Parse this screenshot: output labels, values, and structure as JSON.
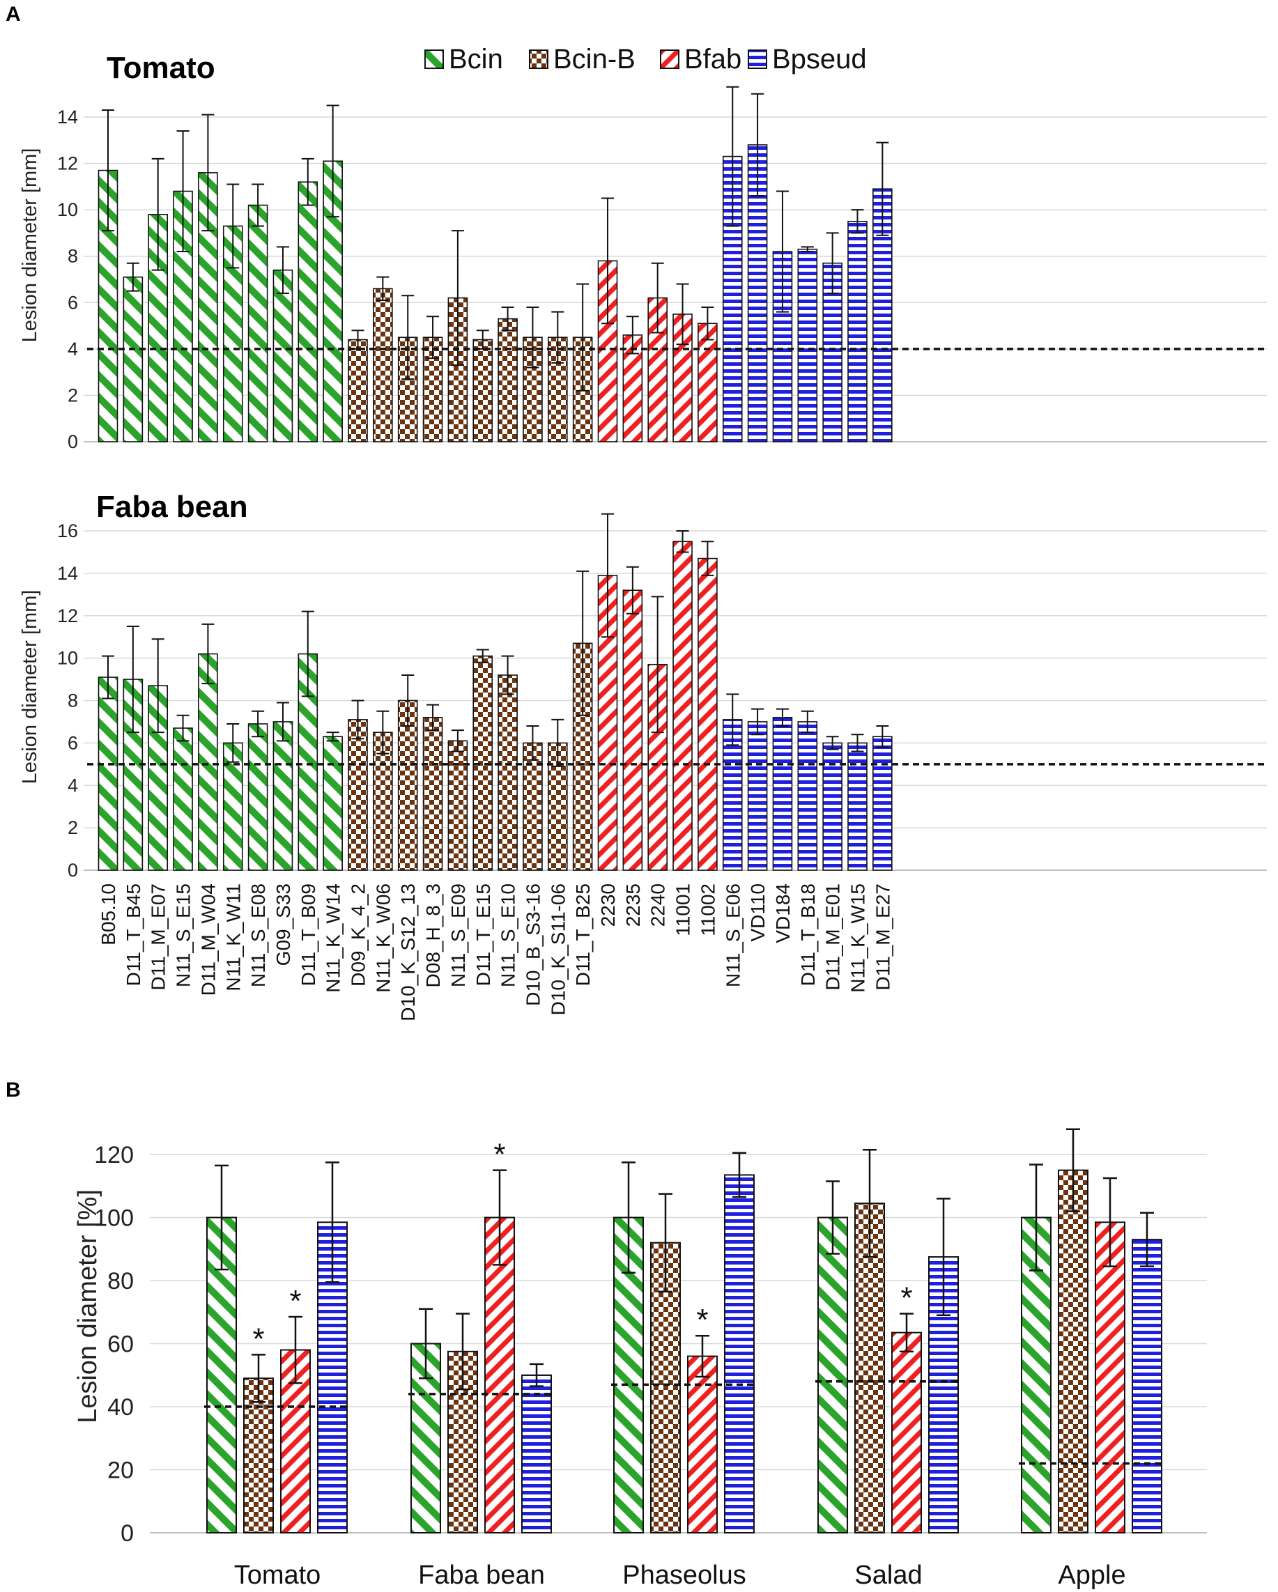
{
  "panel_labels": {
    "a": "A",
    "b": "B"
  },
  "colors": {
    "Bcin": "#2aa42a",
    "Bcin-B": "#6b3410",
    "Bfab": "#f02020",
    "Bpseud": "#1f1fe0"
  },
  "patterns": {
    "Bcin": "diag-green",
    "Bcin-B": "check-brown",
    "Bfab": "diag-red",
    "Bpseud": "hstripe-blue"
  },
  "legend": [
    "Bcin",
    "Bcin-B",
    "Bfab",
    "Bpseud"
  ],
  "chart_data": [
    {
      "id": "A-tomato",
      "type": "bar",
      "title": "Tomato",
      "ylabel": "Lesion diameter [mm]",
      "ylim": [
        0,
        15
      ],
      "yticks": [
        0,
        2,
        4,
        6,
        8,
        10,
        12,
        14
      ],
      "threshold": 4,
      "categories": [
        "B05.10",
        "D11_T_B45",
        "D11_M_E07",
        "N11_S_E15",
        "D11_M_W04",
        "N11_K_W11",
        "N11_S_E08",
        "G09_S33",
        "D11_T_B09",
        "N11_K_W14",
        "D09_K_4_2",
        "N11_K_W06",
        "D10_K_S12_13",
        "D08_H_8_3",
        "N11_S_E09",
        "D11_T_E15",
        "N11_S_E10",
        "D10_B_S3-16",
        "D10_K_S11-06",
        "D11_T_B25",
        "2230",
        "2235",
        "2240",
        "11001",
        "11002",
        "N11_S_E06",
        "VD110",
        "VD184",
        "D11_T_B18",
        "D11_M_E01",
        "N11_K_W15",
        "D11_M_E27"
      ],
      "groups": [
        "Bcin",
        "Bcin",
        "Bcin",
        "Bcin",
        "Bcin",
        "Bcin",
        "Bcin",
        "Bcin",
        "Bcin",
        "Bcin",
        "Bcin-B",
        "Bcin-B",
        "Bcin-B",
        "Bcin-B",
        "Bcin-B",
        "Bcin-B",
        "Bcin-B",
        "Bcin-B",
        "Bcin-B",
        "Bcin-B",
        "Bfab",
        "Bfab",
        "Bfab",
        "Bfab",
        "Bfab",
        "Bpseud",
        "Bpseud",
        "Bpseud",
        "Bpseud",
        "Bpseud",
        "Bpseud",
        "Bpseud"
      ],
      "values": [
        11.7,
        7.1,
        9.8,
        10.8,
        11.6,
        9.3,
        10.2,
        7.4,
        11.2,
        12.1,
        4.4,
        6.6,
        4.5,
        4.5,
        6.2,
        4.4,
        5.3,
        4.5,
        4.5,
        4.5,
        7.8,
        4.6,
        6.2,
        5.5,
        5.1,
        12.3,
        12.8,
        8.2,
        8.3,
        7.7,
        9.5,
        10.9
      ],
      "errors": [
        2.6,
        0.6,
        2.4,
        2.6,
        2.5,
        1.8,
        0.9,
        1.0,
        1.0,
        2.4,
        0.4,
        0.5,
        1.8,
        0.9,
        2.9,
        0.4,
        0.5,
        1.3,
        1.1,
        2.3,
        2.7,
        0.8,
        1.5,
        1.3,
        0.7,
        3.0,
        2.2,
        2.6,
        0.1,
        1.3,
        0.5,
        2.0
      ]
    },
    {
      "id": "A-faba",
      "type": "bar",
      "title": "Faba bean",
      "ylabel": "Lesion diameter [mm]",
      "ylim": [
        0,
        17
      ],
      "yticks": [
        0,
        2,
        4,
        6,
        8,
        10,
        12,
        14,
        16
      ],
      "threshold": 5,
      "values": [
        9.1,
        9.0,
        8.7,
        6.7,
        10.2,
        6.0,
        6.9,
        7.0,
        10.2,
        6.3,
        7.1,
        6.5,
        8.0,
        7.2,
        6.1,
        10.1,
        9.2,
        6.0,
        6.0,
        10.7,
        13.9,
        13.2,
        9.7,
        15.5,
        14.7,
        7.1,
        7.0,
        7.2,
        7.0,
        6.0,
        6.0,
        6.3
      ],
      "errors": [
        1.0,
        2.5,
        2.2,
        0.6,
        1.4,
        0.9,
        0.6,
        0.9,
        2.0,
        0.2,
        0.9,
        1.0,
        1.2,
        0.6,
        0.5,
        0.3,
        0.9,
        0.8,
        1.1,
        3.4,
        2.9,
        1.1,
        3.2,
        0.5,
        0.8,
        1.2,
        0.6,
        0.4,
        0.5,
        0.3,
        0.4,
        0.5
      ]
    },
    {
      "id": "B",
      "type": "bar",
      "ylabel": "Lesion diameter [%]",
      "ylim": [
        0,
        125
      ],
      "yticks": [
        0,
        20,
        40,
        60,
        80,
        100,
        120
      ],
      "categories": [
        "Tomato",
        "Faba bean",
        "Phaseolus",
        "Salad",
        "Apple"
      ],
      "series": [
        {
          "name": "Bcin",
          "values": [
            100,
            60,
            100,
            100,
            100
          ],
          "errors": [
            16.5,
            11,
            17.5,
            11.5,
            16.8
          ]
        },
        {
          "name": "Bcin-B",
          "values": [
            49,
            57.5,
            92,
            104.5,
            115
          ],
          "errors": [
            7.5,
            12,
            15.5,
            17,
            13
          ]
        },
        {
          "name": "Bfab",
          "values": [
            58,
            100,
            56,
            63.5,
            98.5
          ],
          "errors": [
            10.5,
            15,
            6.5,
            6,
            14
          ]
        },
        {
          "name": "Bpseud",
          "values": [
            98.5,
            50,
            113.5,
            87.5,
            93
          ],
          "errors": [
            19,
            3.5,
            7,
            18.5,
            8.5
          ]
        }
      ],
      "significance": [
        {
          "category": "Tomato",
          "series": "Bcin-B",
          "mark": "*"
        },
        {
          "category": "Tomato",
          "series": "Bfab",
          "mark": "*"
        },
        {
          "category": "Faba bean",
          "series": "Bfab",
          "mark": "*"
        },
        {
          "category": "Phaseolus",
          "series": "Bfab",
          "mark": "*"
        },
        {
          "category": "Salad",
          "series": "Bfab",
          "mark": "*"
        }
      ],
      "thresholds": [
        40,
        44,
        47,
        48,
        22
      ]
    }
  ]
}
